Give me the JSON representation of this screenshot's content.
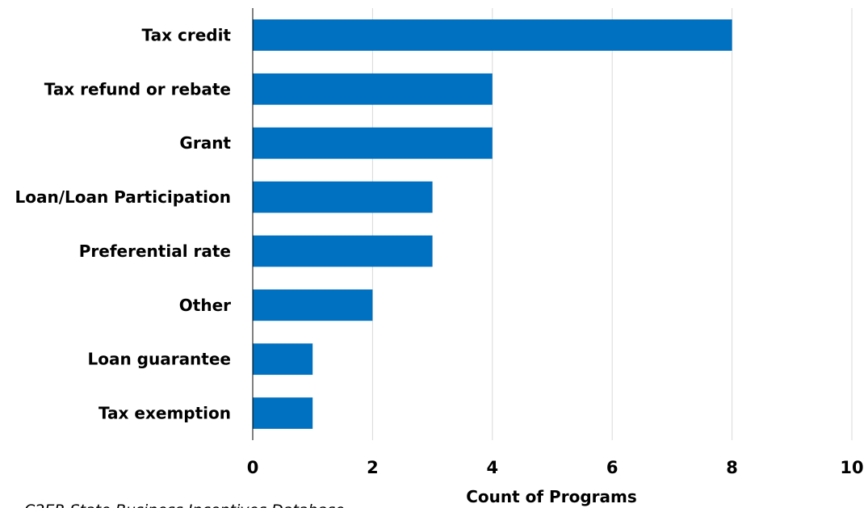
{
  "chart_data": {
    "type": "bar",
    "orientation": "horizontal",
    "categories": [
      "Tax credit",
      "Tax refund or rebate",
      "Grant",
      "Loan/Loan Participation",
      "Preferential rate",
      "Other",
      "Loan guarantee",
      "Tax exemption"
    ],
    "values": [
      8,
      4,
      4,
      3,
      3,
      2,
      1,
      1
    ],
    "xlabel": "Count of Programs",
    "ylabel": "",
    "xlim": [
      0,
      10
    ],
    "xticks": [
      "0",
      "2",
      "4",
      "6",
      "8",
      "10"
    ],
    "grid": "vertical",
    "bar_color": "#0070C0",
    "gridline_color": "#D9D9D9"
  },
  "source_note": "C2ER State Business Incentives Database"
}
